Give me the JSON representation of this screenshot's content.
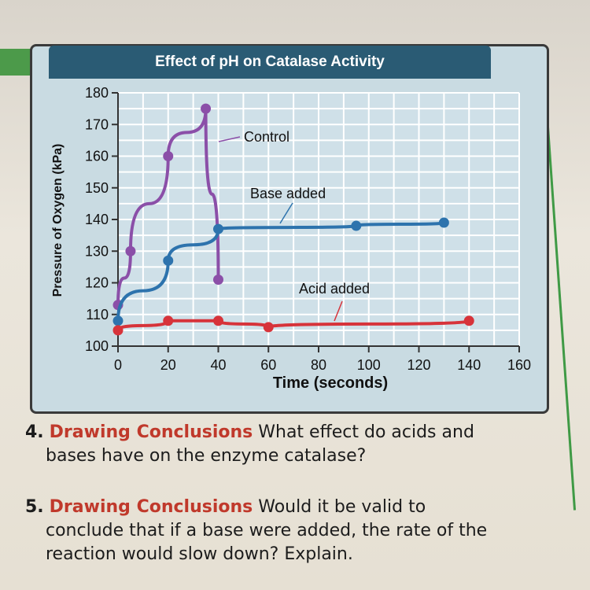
{
  "chart_data": {
    "type": "line",
    "title": "Effect of pH on Catalase Activity",
    "xlabel": "Time (seconds)",
    "ylabel": "Pressure of Oxygen (kPa)",
    "xlim": [
      0,
      160
    ],
    "ylim": [
      100,
      180
    ],
    "xticks": [
      "0",
      "20",
      "40",
      "60",
      "80",
      "100",
      "120",
      "140",
      "160"
    ],
    "yticks": [
      "100",
      "110",
      "120",
      "130",
      "140",
      "150",
      "160",
      "170",
      "180"
    ],
    "grid": true,
    "series": [
      {
        "name": "Control",
        "color": "#8b4fa8",
        "x": [
          0,
          5,
          20,
          35,
          40
        ],
        "y": [
          113,
          130,
          160,
          175,
          121
        ]
      },
      {
        "name": "Base added",
        "color": "#2d73ad",
        "x": [
          0,
          20,
          40,
          95,
          130
        ],
        "y": [
          108,
          127,
          137,
          138,
          139
        ]
      },
      {
        "name": "Acid added",
        "color": "#d7333a",
        "x": [
          0,
          20,
          40,
          60,
          140
        ],
        "y": [
          105,
          108,
          108,
          106,
          108
        ]
      }
    ]
  },
  "questions": [
    {
      "number": "4.",
      "label": "Drawing Conclusions",
      "line1": "What effect do acids and",
      "line2": "bases have on the enzyme catalase?"
    },
    {
      "number": "5.",
      "label": "Drawing Conclusions",
      "line1": "Would it be valid to",
      "line2": "conclude that if a base were added, the rate of the",
      "line3": "reaction would slow down? Explain."
    }
  ]
}
